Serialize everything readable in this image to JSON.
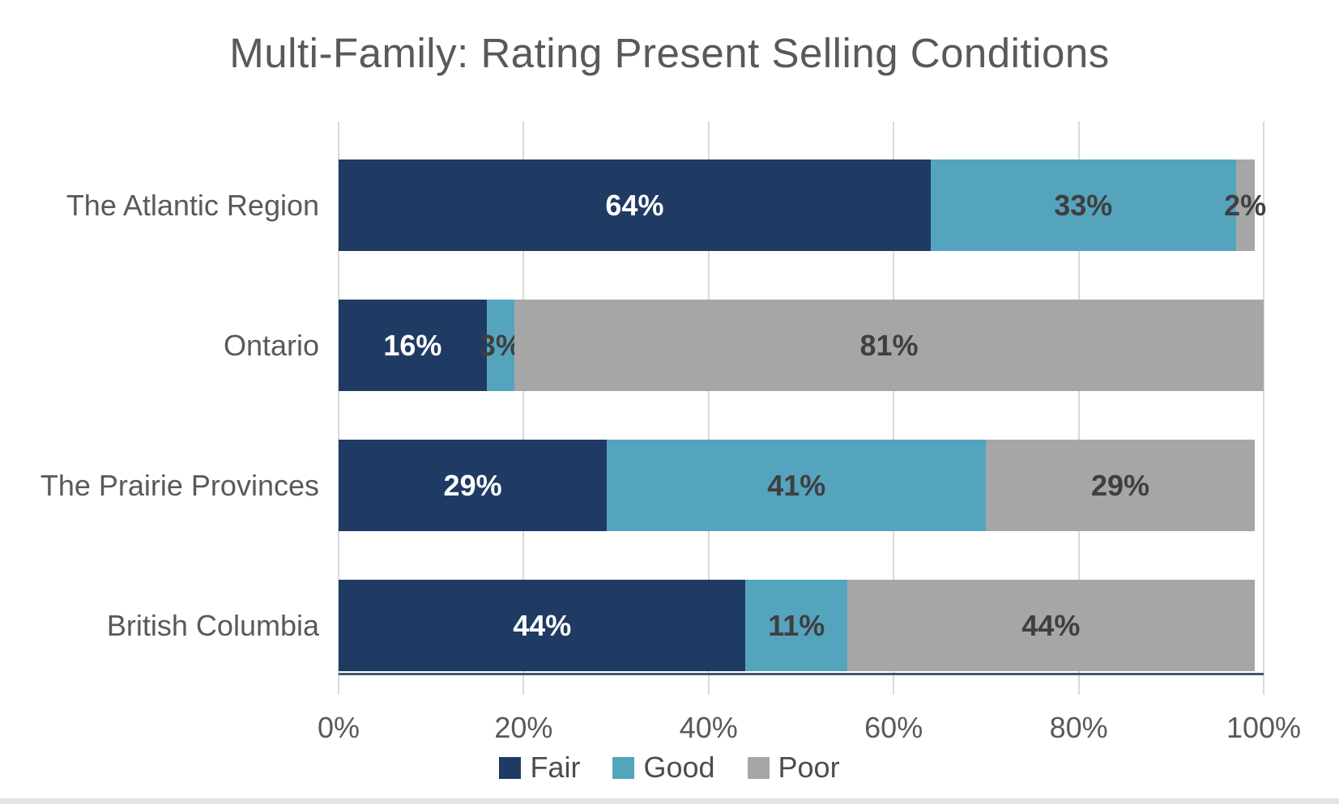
{
  "chart_data": {
    "type": "bar",
    "orientation": "horizontal_stacked",
    "title": "Multi-Family: Rating Present Selling Conditions",
    "title_color": "#595959",
    "categories": [
      "The Atlantic Region",
      "Ontario",
      "The Prairie Provinces",
      "British Columbia"
    ],
    "series": [
      {
        "name": "Fair",
        "color": "#1f3a63",
        "label_color": "#ffffff",
        "values": [
          64,
          16,
          29,
          44
        ],
        "labels": [
          "64%",
          "16%",
          "29%",
          "44%"
        ]
      },
      {
        "name": "Good",
        "color": "#55a4bd",
        "label_color": "#3f3f3f",
        "values": [
          33,
          3,
          41,
          11
        ],
        "labels": [
          "33%",
          "3%",
          "41%",
          "11%"
        ]
      },
      {
        "name": "Poor",
        "color": "#a6a6a6",
        "label_color": "#3f3f3f",
        "values": [
          2,
          81,
          29,
          44
        ],
        "labels": [
          "2%",
          "81%",
          "29%",
          "44%"
        ]
      }
    ],
    "x_axis": {
      "range": [
        0,
        100
      ],
      "ticks": [
        {
          "label": "0%",
          "value": 0
        },
        {
          "label": "20%",
          "value": 20
        },
        {
          "label": "40%",
          "value": 40
        },
        {
          "label": "60%",
          "value": 60
        },
        {
          "label": "80%",
          "value": 80
        },
        {
          "label": "100%",
          "value": 100
        }
      ]
    },
    "legend": {
      "position": "bottom",
      "items": [
        "Fair",
        "Good",
        "Poor"
      ]
    },
    "grid": "vertical",
    "gridline_color": "#d9d9d9",
    "axis_line_color": "#44546a"
  }
}
